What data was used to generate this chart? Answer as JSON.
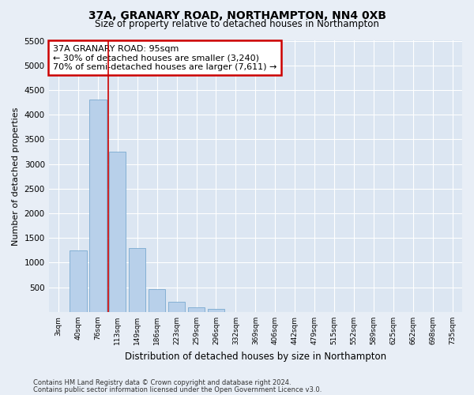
{
  "title": "37A, GRANARY ROAD, NORTHAMPTON, NN4 0XB",
  "subtitle": "Size of property relative to detached houses in Northampton",
  "xlabel": "Distribution of detached houses by size in Northampton",
  "ylabel": "Number of detached properties",
  "footnote1": "Contains HM Land Registry data © Crown copyright and database right 2024.",
  "footnote2": "Contains public sector information licensed under the Open Government Licence v3.0.",
  "bar_labels": [
    "3sqm",
    "40sqm",
    "76sqm",
    "113sqm",
    "149sqm",
    "186sqm",
    "223sqm",
    "259sqm",
    "296sqm",
    "332sqm",
    "369sqm",
    "406sqm",
    "442sqm",
    "479sqm",
    "515sqm",
    "552sqm",
    "589sqm",
    "625sqm",
    "662sqm",
    "698sqm",
    "735sqm"
  ],
  "bar_values": [
    0,
    1250,
    4300,
    3250,
    1300,
    470,
    200,
    100,
    70,
    0,
    0,
    0,
    0,
    0,
    0,
    0,
    0,
    0,
    0,
    0,
    0
  ],
  "bar_color": "#b8d0ea",
  "bar_edge_color": "#7aaad0",
  "property_label": "37A GRANARY ROAD: 95sqm",
  "annotation_line1": "← 30% of detached houses are smaller (3,240)",
  "annotation_line2": "70% of semi-detached houses are larger (7,611) →",
  "red_line_color": "#cc0000",
  "annotation_box_edgecolor": "#cc0000",
  "red_line_xindex": 2.51,
  "ylim": [
    0,
    5500
  ],
  "yticks": [
    0,
    500,
    1000,
    1500,
    2000,
    2500,
    3000,
    3500,
    4000,
    4500,
    5000,
    5500
  ],
  "bg_color": "#e8eef6",
  "plot_bg_color": "#dce6f2"
}
